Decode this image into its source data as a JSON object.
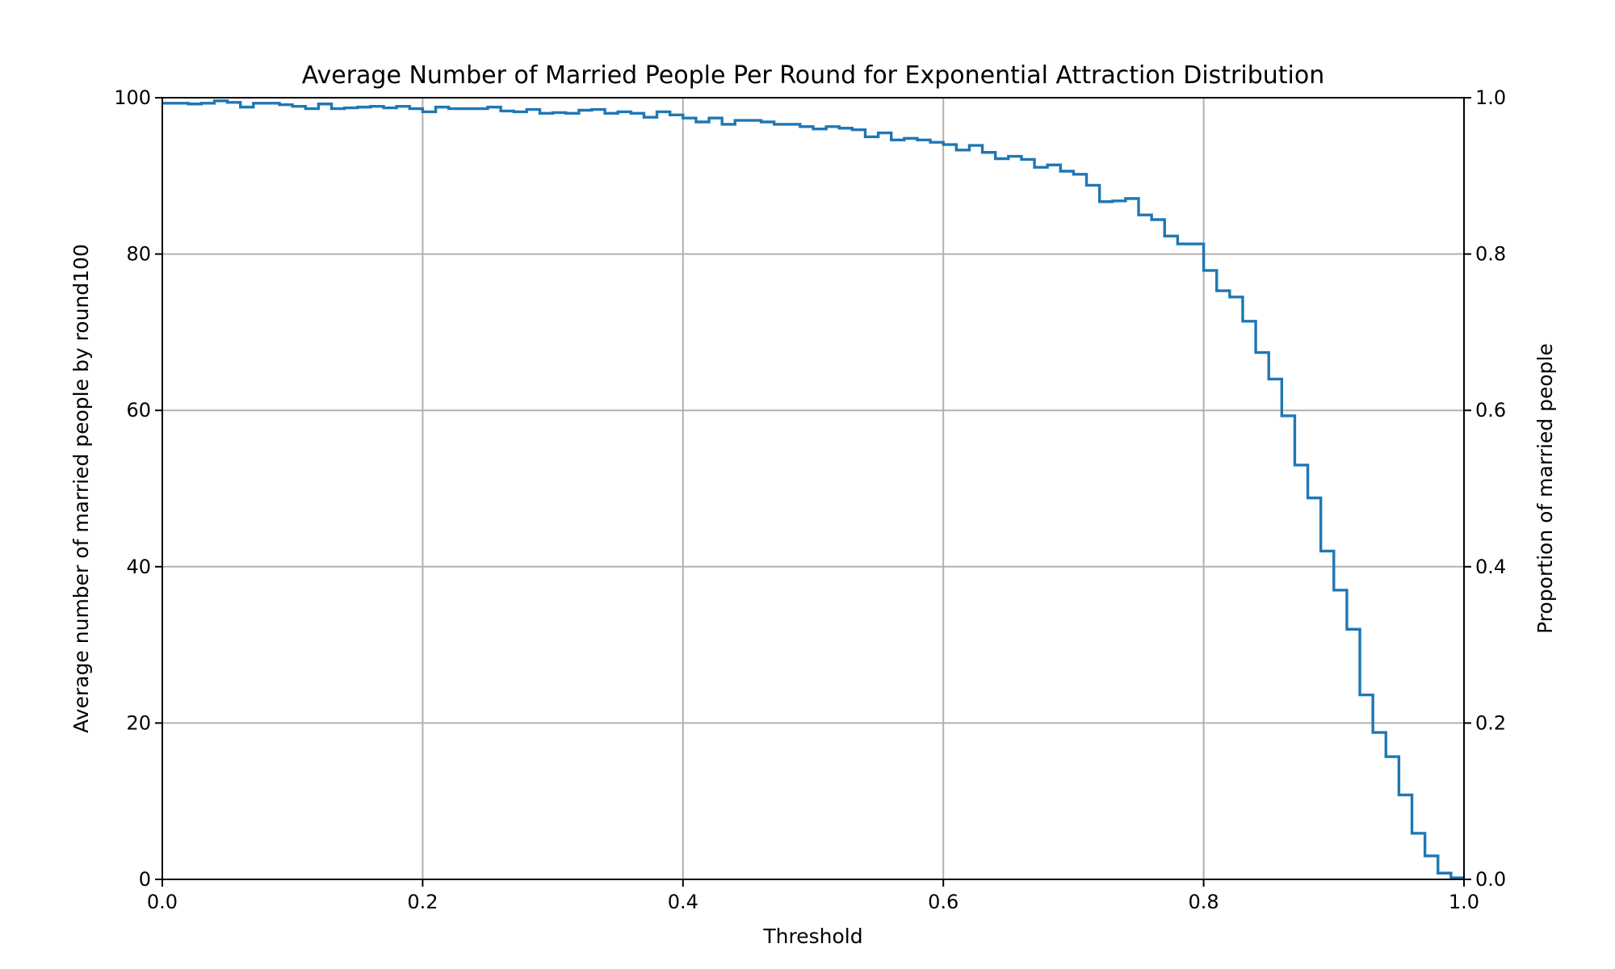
{
  "chart_data": {
    "type": "line",
    "drawstyle": "steps-post",
    "title": "Average Number of Married People Per Round for Exponential Attraction Distribution",
    "xlabel": "Threshold",
    "ylabel": "Average number of married people by round100",
    "y2label": "Proportion of married people",
    "xlim": [
      0.0,
      1.0
    ],
    "ylim": [
      0,
      100
    ],
    "y2lim": [
      0.0,
      1.0
    ],
    "xticks": [
      "0.0",
      "0.2",
      "0.4",
      "0.6",
      "0.8",
      "1.0"
    ],
    "yticks": [
      "0",
      "20",
      "40",
      "60",
      "80",
      "100"
    ],
    "y2ticks": [
      "0.0",
      "0.2",
      "0.4",
      "0.6",
      "0.8",
      "1.0"
    ],
    "grid": true,
    "series": [
      {
        "color": "#1f77b4",
        "x": [
          0.0,
          0.01,
          0.02,
          0.03,
          0.04,
          0.05,
          0.06,
          0.07,
          0.08,
          0.09,
          0.1,
          0.11,
          0.12,
          0.13,
          0.14,
          0.15,
          0.16,
          0.17,
          0.18,
          0.19,
          0.2,
          0.21,
          0.22,
          0.23,
          0.24,
          0.25,
          0.26,
          0.27,
          0.28,
          0.29,
          0.3,
          0.31,
          0.32,
          0.33,
          0.34,
          0.35,
          0.36,
          0.37,
          0.38,
          0.39,
          0.4,
          0.41,
          0.42,
          0.43,
          0.44,
          0.45,
          0.46,
          0.47,
          0.48,
          0.49,
          0.5,
          0.51,
          0.52,
          0.53,
          0.54,
          0.55,
          0.56,
          0.57,
          0.58,
          0.59,
          0.6,
          0.61,
          0.62,
          0.63,
          0.64,
          0.65,
          0.66,
          0.67,
          0.68,
          0.69,
          0.7,
          0.71,
          0.72,
          0.73,
          0.74,
          0.75,
          0.76,
          0.77,
          0.78,
          0.79,
          0.8,
          0.81,
          0.82,
          0.83,
          0.84,
          0.85,
          0.86,
          0.87,
          0.88,
          0.89,
          0.9,
          0.91,
          0.92,
          0.93,
          0.94,
          0.95,
          0.96,
          0.97,
          0.98,
          0.99
        ],
        "y": [
          99.3,
          99.3,
          99.2,
          99.3,
          99.6,
          99.4,
          98.8,
          99.3,
          99.3,
          99.1,
          98.9,
          98.6,
          99.2,
          98.6,
          98.7,
          98.8,
          98.9,
          98.7,
          98.9,
          98.6,
          98.2,
          98.8,
          98.6,
          98.6,
          98.6,
          98.8,
          98.3,
          98.2,
          98.5,
          98.0,
          98.1,
          98.0,
          98.4,
          98.5,
          98.0,
          98.2,
          98.0,
          97.5,
          98.2,
          97.8,
          97.4,
          96.9,
          97.4,
          96.6,
          97.1,
          97.1,
          96.9,
          96.6,
          96.6,
          96.3,
          96.0,
          96.3,
          96.1,
          95.9,
          95.0,
          95.5,
          94.6,
          94.8,
          94.6,
          94.3,
          94.0,
          93.3,
          93.9,
          93.0,
          92.2,
          92.5,
          92.1,
          91.1,
          91.4,
          90.6,
          90.2,
          88.8,
          86.7,
          86.8,
          87.1,
          85.0,
          84.4,
          82.3,
          81.3,
          81.3,
          77.9,
          75.3,
          74.5,
          71.4,
          67.4,
          64.0,
          59.3,
          53.0,
          48.8,
          42.0,
          37.0,
          32.0,
          23.6,
          18.8,
          15.7,
          10.8,
          5.9,
          3.0,
          0.8,
          0.2
        ]
      }
    ]
  }
}
